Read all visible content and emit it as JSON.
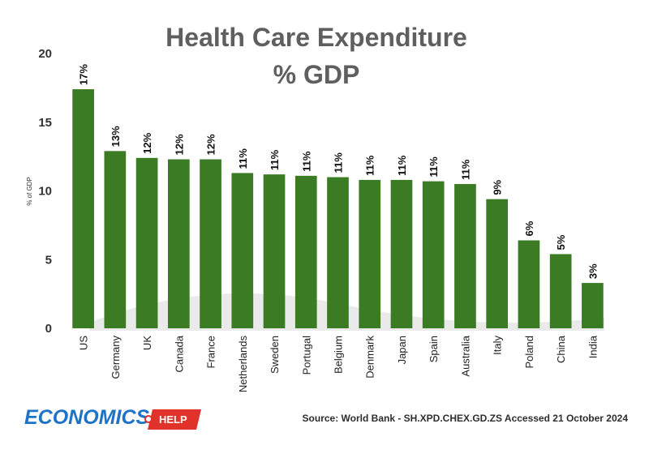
{
  "chart_data": {
    "type": "bar",
    "title": "Health Care Expenditure",
    "subtitle": "% GDP",
    "xlabel": "",
    "ylabel": "% of GDP",
    "ylim": [
      0,
      20
    ],
    "yticks": [
      "0",
      "5",
      "10",
      "15",
      "20"
    ],
    "categories": [
      "US",
      "Germany",
      "UK",
      "Canada",
      "France",
      "Netherlands",
      "Sweden",
      "Portugal",
      "Belgium",
      "Denmark",
      "Japan",
      "Spain",
      "Australia",
      "Italy",
      "Poland",
      "China",
      "India"
    ],
    "values": [
      17.4,
      12.9,
      12.4,
      12.3,
      12.3,
      11.3,
      11.2,
      11.1,
      11.0,
      10.8,
      10.8,
      10.7,
      10.5,
      9.4,
      6.4,
      5.4,
      3.3
    ],
    "data_labels": [
      "17%",
      "13%",
      "12%",
      "12%",
      "12%",
      "11%",
      "11%",
      "11%",
      "11%",
      "11%",
      "11%",
      "11%",
      "11%",
      "9%",
      "6%",
      "5%",
      "3%"
    ],
    "bar_color": "#3b7b23",
    "grid": false
  },
  "footer": {
    "source": "Source: World Bank - SH.XPD.CHEX.GD.ZS Accessed 21 October 2024"
  },
  "logo": {
    "word": "ECONOMICS",
    "tag": "HELP",
    "word_color": "#1e73c8",
    "tag_color": "#e0312a"
  }
}
